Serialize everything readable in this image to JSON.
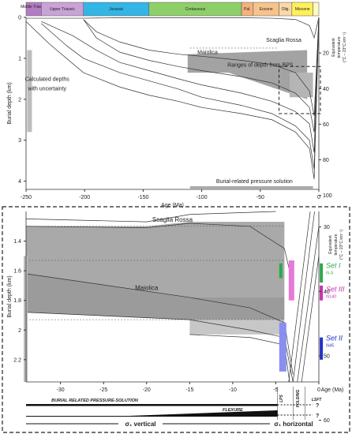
{
  "chart_data": [
    {
      "type": "line",
      "periods": [
        {
          "name": "Middle Triassic",
          "start": -250,
          "end": -237,
          "color": "#b27cc4"
        },
        {
          "name": "Upper Triassic",
          "start": -237,
          "end": -201,
          "color": "#c9a3d6"
        },
        {
          "name": "Jurassic",
          "start": -201,
          "end": -145,
          "color": "#33b5e5"
        },
        {
          "name": "Cretaceous",
          "start": -145,
          "end": -66,
          "color": "#8fcf6a"
        },
        {
          "name": "Pal.",
          "start": -66,
          "end": -56,
          "color": "#f5b27b"
        },
        {
          "name": "Eocene",
          "start": -56,
          "end": -34,
          "color": "#f7c38c"
        },
        {
          "name": "Olig.",
          "start": -34,
          "end": -23,
          "color": "#fbd8a8"
        },
        {
          "name": "Miocene",
          "start": -23,
          "end": -5,
          "color": "#fff05a"
        },
        {
          "name": "",
          "start": -5,
          "end": 0,
          "color": "#fff9c4"
        }
      ],
      "xlabel": "Age (Ma)",
      "ylabel": "Burial depth (km)",
      "y2label_line1": "Equivalent",
      "y2label_line2": "temperature",
      "y2label_line3": "(°C – 23°C.km⁻¹)",
      "xlim": [
        -250,
        0
      ],
      "ylim": [
        0,
        4.2
      ],
      "xticks": [
        -250,
        -200,
        -150,
        -100,
        -50,
        0
      ],
      "xtick_labels": [
        "-250",
        "-200",
        "-150",
        "-100",
        "-50",
        "0"
      ],
      "yticks": [
        0,
        1,
        2,
        3,
        4
      ],
      "ytick_labels": [
        "0",
        "1",
        "2",
        "3",
        "4"
      ],
      "y2ticks": [
        20,
        40,
        60,
        80,
        100
      ],
      "y2tick_labels": [
        "20",
        "40",
        "60",
        "80",
        "100"
      ],
      "band": {
        "label": "Ranges of depth from BPS",
        "y_top": [
          0.9,
          0.8
        ],
        "y_bottom": [
          1.9,
          2.0
        ],
        "x": [
          -112,
          -10
        ]
      },
      "annotations": [
        {
          "text": "Maiolica",
          "x": -95,
          "y": 0.9
        },
        {
          "text": "Scaglia Rossa",
          "x": -30,
          "y": 0.6
        },
        {
          "text": "Calculated depths",
          "x": -232,
          "y": 1.55
        },
        {
          "text": "with uncertainty",
          "x": -232,
          "y": 1.78
        }
      ],
      "pressure_solution_label": "Burial-related pressure solution",
      "curves": [
        {
          "x": [
            -250,
            -237,
            -201,
            -170,
            -145,
            -110,
            -66,
            -40,
            -20,
            -8,
            -4,
            0
          ],
          "y": [
            0.02,
            0.02,
            0.02,
            0.01,
            0.01,
            0.01,
            0.01,
            0.02,
            0.05,
            0.2,
            0.5,
            0.0
          ]
        },
        {
          "x": [
            -201,
            -190,
            -170,
            -145,
            -120,
            -100,
            -66,
            -40,
            -20,
            -8,
            -4,
            0
          ],
          "y": [
            0.05,
            0.35,
            0.6,
            0.8,
            0.9,
            0.95,
            1.05,
            1.15,
            1.35,
            1.8,
            2.4,
            0.0
          ]
        },
        {
          "x": [
            -201,
            -190,
            -170,
            -145,
            -120,
            -100,
            -66,
            -40,
            -20,
            -8,
            -4,
            0
          ],
          "y": [
            0.05,
            0.5,
            0.85,
            1.05,
            1.2,
            1.3,
            1.45,
            1.6,
            1.85,
            2.2,
            2.8,
            0.0
          ]
        },
        {
          "x": [
            -237,
            -210,
            -190,
            -170,
            -145,
            -120,
            -100,
            -66,
            -40,
            -20,
            -8,
            -4,
            0
          ],
          "y": [
            0.1,
            0.45,
            0.8,
            1.1,
            1.3,
            1.5,
            1.65,
            1.85,
            2.05,
            2.3,
            2.6,
            3.3,
            0.0
          ]
        },
        {
          "x": [
            -237,
            -215,
            -201,
            -170,
            -145,
            -120,
            -100,
            -66,
            -40,
            -20,
            -8,
            -4,
            0
          ],
          "y": [
            0.15,
            0.7,
            1.0,
            1.35,
            1.55,
            1.75,
            1.95,
            2.15,
            2.35,
            2.65,
            3.0,
            3.7,
            0.0
          ]
        },
        {
          "x": [
            -250,
            -230,
            -201,
            -170,
            -145,
            -120,
            -100,
            -66,
            -40,
            -20,
            -8,
            -4,
            0
          ],
          "y": [
            0.1,
            0.65,
            1.35,
            1.7,
            1.9,
            2.05,
            2.2,
            2.35,
            2.5,
            2.8,
            3.2,
            3.95,
            0.0
          ]
        }
      ],
      "calculated_depth_bar": {
        "x": -247,
        "y_range": [
          0.8,
          2.8
        ]
      },
      "grid": false,
      "legend": "none"
    },
    {
      "type": "line",
      "xlabel": "Age (Ma)",
      "ylabel": "Burial depth (km)",
      "y2label_line1": "Equivalent",
      "y2label_line2": "temperature",
      "y2label_line3": "(°C – 23°C.km⁻¹)",
      "xlim": [
        -34,
        0
      ],
      "ylim": [
        2.35,
        1.2
      ],
      "xticks": [
        -30,
        -25,
        -20,
        -15,
        -10,
        -5,
        0
      ],
      "xtick_labels": [
        "-30",
        "-25",
        "-20",
        "-15",
        "-10",
        "-5",
        "0"
      ],
      "yticks": [
        1.4,
        1.6,
        1.8,
        2.0,
        2.2
      ],
      "ytick_labels": [
        "1.4",
        "1.6",
        "1.8",
        "2",
        "2.2"
      ],
      "y2ticks": [
        30,
        40,
        50,
        60
      ],
      "y2tick_labels": [
        "30",
        "40",
        "50",
        "60"
      ],
      "annotations": [
        {
          "text": "Scaglia Rossa",
          "x": -17,
          "y": 1.27
        },
        {
          "text": "Maiolica",
          "x": -20,
          "y": 1.73
        }
      ],
      "sets": [
        {
          "name": "Set I",
          "sub": "N-S",
          "color": "#2fa84f"
        },
        {
          "name": "Set III",
          "sub": "N140",
          "color": "#c832b0"
        },
        {
          "name": "Set II",
          "sub": "N45",
          "color": "#2431c8"
        }
      ],
      "phases": [
        {
          "label": "LPS"
        },
        {
          "label": "FOLDING"
        },
        {
          "label": "LSFT"
        }
      ],
      "bars": [
        {
          "label": "BURIAL RELATED PRESSURE-SOLUTION"
        },
        {
          "label": "FLEXURE"
        },
        {
          "label": "σ₁ vertical"
        },
        {
          "label": "σ₁ horizontal"
        },
        {
          "label": "?"
        },
        {
          "label": "?"
        }
      ],
      "grid": false,
      "legend": "none"
    }
  ]
}
